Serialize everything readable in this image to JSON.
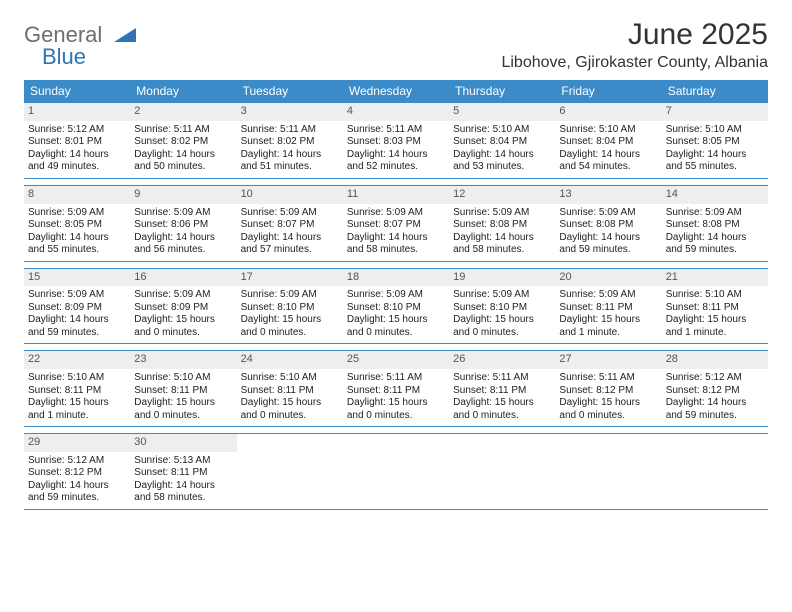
{
  "logo": {
    "general": "General",
    "blue": "Blue"
  },
  "title": "June 2025",
  "location": "Libohove, Gjirokaster County, Albania",
  "colors": {
    "header_bg": "#3b8bc8",
    "header_text": "#ffffff",
    "daynum_bg": "#eceeef",
    "rule": "#3b8bc8",
    "logo_gray": "#6e6e6e",
    "logo_blue": "#2f74b5"
  },
  "weekdays": [
    "Sunday",
    "Monday",
    "Tuesday",
    "Wednesday",
    "Thursday",
    "Friday",
    "Saturday"
  ],
  "weeks": [
    [
      {
        "n": "1",
        "sunrise": "Sunrise: 5:12 AM",
        "sunset": "Sunset: 8:01 PM",
        "day": "Daylight: 14 hours and 49 minutes."
      },
      {
        "n": "2",
        "sunrise": "Sunrise: 5:11 AM",
        "sunset": "Sunset: 8:02 PM",
        "day": "Daylight: 14 hours and 50 minutes."
      },
      {
        "n": "3",
        "sunrise": "Sunrise: 5:11 AM",
        "sunset": "Sunset: 8:02 PM",
        "day": "Daylight: 14 hours and 51 minutes."
      },
      {
        "n": "4",
        "sunrise": "Sunrise: 5:11 AM",
        "sunset": "Sunset: 8:03 PM",
        "day": "Daylight: 14 hours and 52 minutes."
      },
      {
        "n": "5",
        "sunrise": "Sunrise: 5:10 AM",
        "sunset": "Sunset: 8:04 PM",
        "day": "Daylight: 14 hours and 53 minutes."
      },
      {
        "n": "6",
        "sunrise": "Sunrise: 5:10 AM",
        "sunset": "Sunset: 8:04 PM",
        "day": "Daylight: 14 hours and 54 minutes."
      },
      {
        "n": "7",
        "sunrise": "Sunrise: 5:10 AM",
        "sunset": "Sunset: 8:05 PM",
        "day": "Daylight: 14 hours and 55 minutes."
      }
    ],
    [
      {
        "n": "8",
        "sunrise": "Sunrise: 5:09 AM",
        "sunset": "Sunset: 8:05 PM",
        "day": "Daylight: 14 hours and 55 minutes."
      },
      {
        "n": "9",
        "sunrise": "Sunrise: 5:09 AM",
        "sunset": "Sunset: 8:06 PM",
        "day": "Daylight: 14 hours and 56 minutes."
      },
      {
        "n": "10",
        "sunrise": "Sunrise: 5:09 AM",
        "sunset": "Sunset: 8:07 PM",
        "day": "Daylight: 14 hours and 57 minutes."
      },
      {
        "n": "11",
        "sunrise": "Sunrise: 5:09 AM",
        "sunset": "Sunset: 8:07 PM",
        "day": "Daylight: 14 hours and 58 minutes."
      },
      {
        "n": "12",
        "sunrise": "Sunrise: 5:09 AM",
        "sunset": "Sunset: 8:08 PM",
        "day": "Daylight: 14 hours and 58 minutes."
      },
      {
        "n": "13",
        "sunrise": "Sunrise: 5:09 AM",
        "sunset": "Sunset: 8:08 PM",
        "day": "Daylight: 14 hours and 59 minutes."
      },
      {
        "n": "14",
        "sunrise": "Sunrise: 5:09 AM",
        "sunset": "Sunset: 8:08 PM",
        "day": "Daylight: 14 hours and 59 minutes."
      }
    ],
    [
      {
        "n": "15",
        "sunrise": "Sunrise: 5:09 AM",
        "sunset": "Sunset: 8:09 PM",
        "day": "Daylight: 14 hours and 59 minutes."
      },
      {
        "n": "16",
        "sunrise": "Sunrise: 5:09 AM",
        "sunset": "Sunset: 8:09 PM",
        "day": "Daylight: 15 hours and 0 minutes."
      },
      {
        "n": "17",
        "sunrise": "Sunrise: 5:09 AM",
        "sunset": "Sunset: 8:10 PM",
        "day": "Daylight: 15 hours and 0 minutes."
      },
      {
        "n": "18",
        "sunrise": "Sunrise: 5:09 AM",
        "sunset": "Sunset: 8:10 PM",
        "day": "Daylight: 15 hours and 0 minutes."
      },
      {
        "n": "19",
        "sunrise": "Sunrise: 5:09 AM",
        "sunset": "Sunset: 8:10 PM",
        "day": "Daylight: 15 hours and 0 minutes."
      },
      {
        "n": "20",
        "sunrise": "Sunrise: 5:09 AM",
        "sunset": "Sunset: 8:11 PM",
        "day": "Daylight: 15 hours and 1 minute."
      },
      {
        "n": "21",
        "sunrise": "Sunrise: 5:10 AM",
        "sunset": "Sunset: 8:11 PM",
        "day": "Daylight: 15 hours and 1 minute."
      }
    ],
    [
      {
        "n": "22",
        "sunrise": "Sunrise: 5:10 AM",
        "sunset": "Sunset: 8:11 PM",
        "day": "Daylight: 15 hours and 1 minute."
      },
      {
        "n": "23",
        "sunrise": "Sunrise: 5:10 AM",
        "sunset": "Sunset: 8:11 PM",
        "day": "Daylight: 15 hours and 0 minutes."
      },
      {
        "n": "24",
        "sunrise": "Sunrise: 5:10 AM",
        "sunset": "Sunset: 8:11 PM",
        "day": "Daylight: 15 hours and 0 minutes."
      },
      {
        "n": "25",
        "sunrise": "Sunrise: 5:11 AM",
        "sunset": "Sunset: 8:11 PM",
        "day": "Daylight: 15 hours and 0 minutes."
      },
      {
        "n": "26",
        "sunrise": "Sunrise: 5:11 AM",
        "sunset": "Sunset: 8:11 PM",
        "day": "Daylight: 15 hours and 0 minutes."
      },
      {
        "n": "27",
        "sunrise": "Sunrise: 5:11 AM",
        "sunset": "Sunset: 8:12 PM",
        "day": "Daylight: 15 hours and 0 minutes."
      },
      {
        "n": "28",
        "sunrise": "Sunrise: 5:12 AM",
        "sunset": "Sunset: 8:12 PM",
        "day": "Daylight: 14 hours and 59 minutes."
      }
    ],
    [
      {
        "n": "29",
        "sunrise": "Sunrise: 5:12 AM",
        "sunset": "Sunset: 8:12 PM",
        "day": "Daylight: 14 hours and 59 minutes."
      },
      {
        "n": "30",
        "sunrise": "Sunrise: 5:13 AM",
        "sunset": "Sunset: 8:11 PM",
        "day": "Daylight: 14 hours and 58 minutes."
      },
      null,
      null,
      null,
      null,
      null
    ]
  ]
}
